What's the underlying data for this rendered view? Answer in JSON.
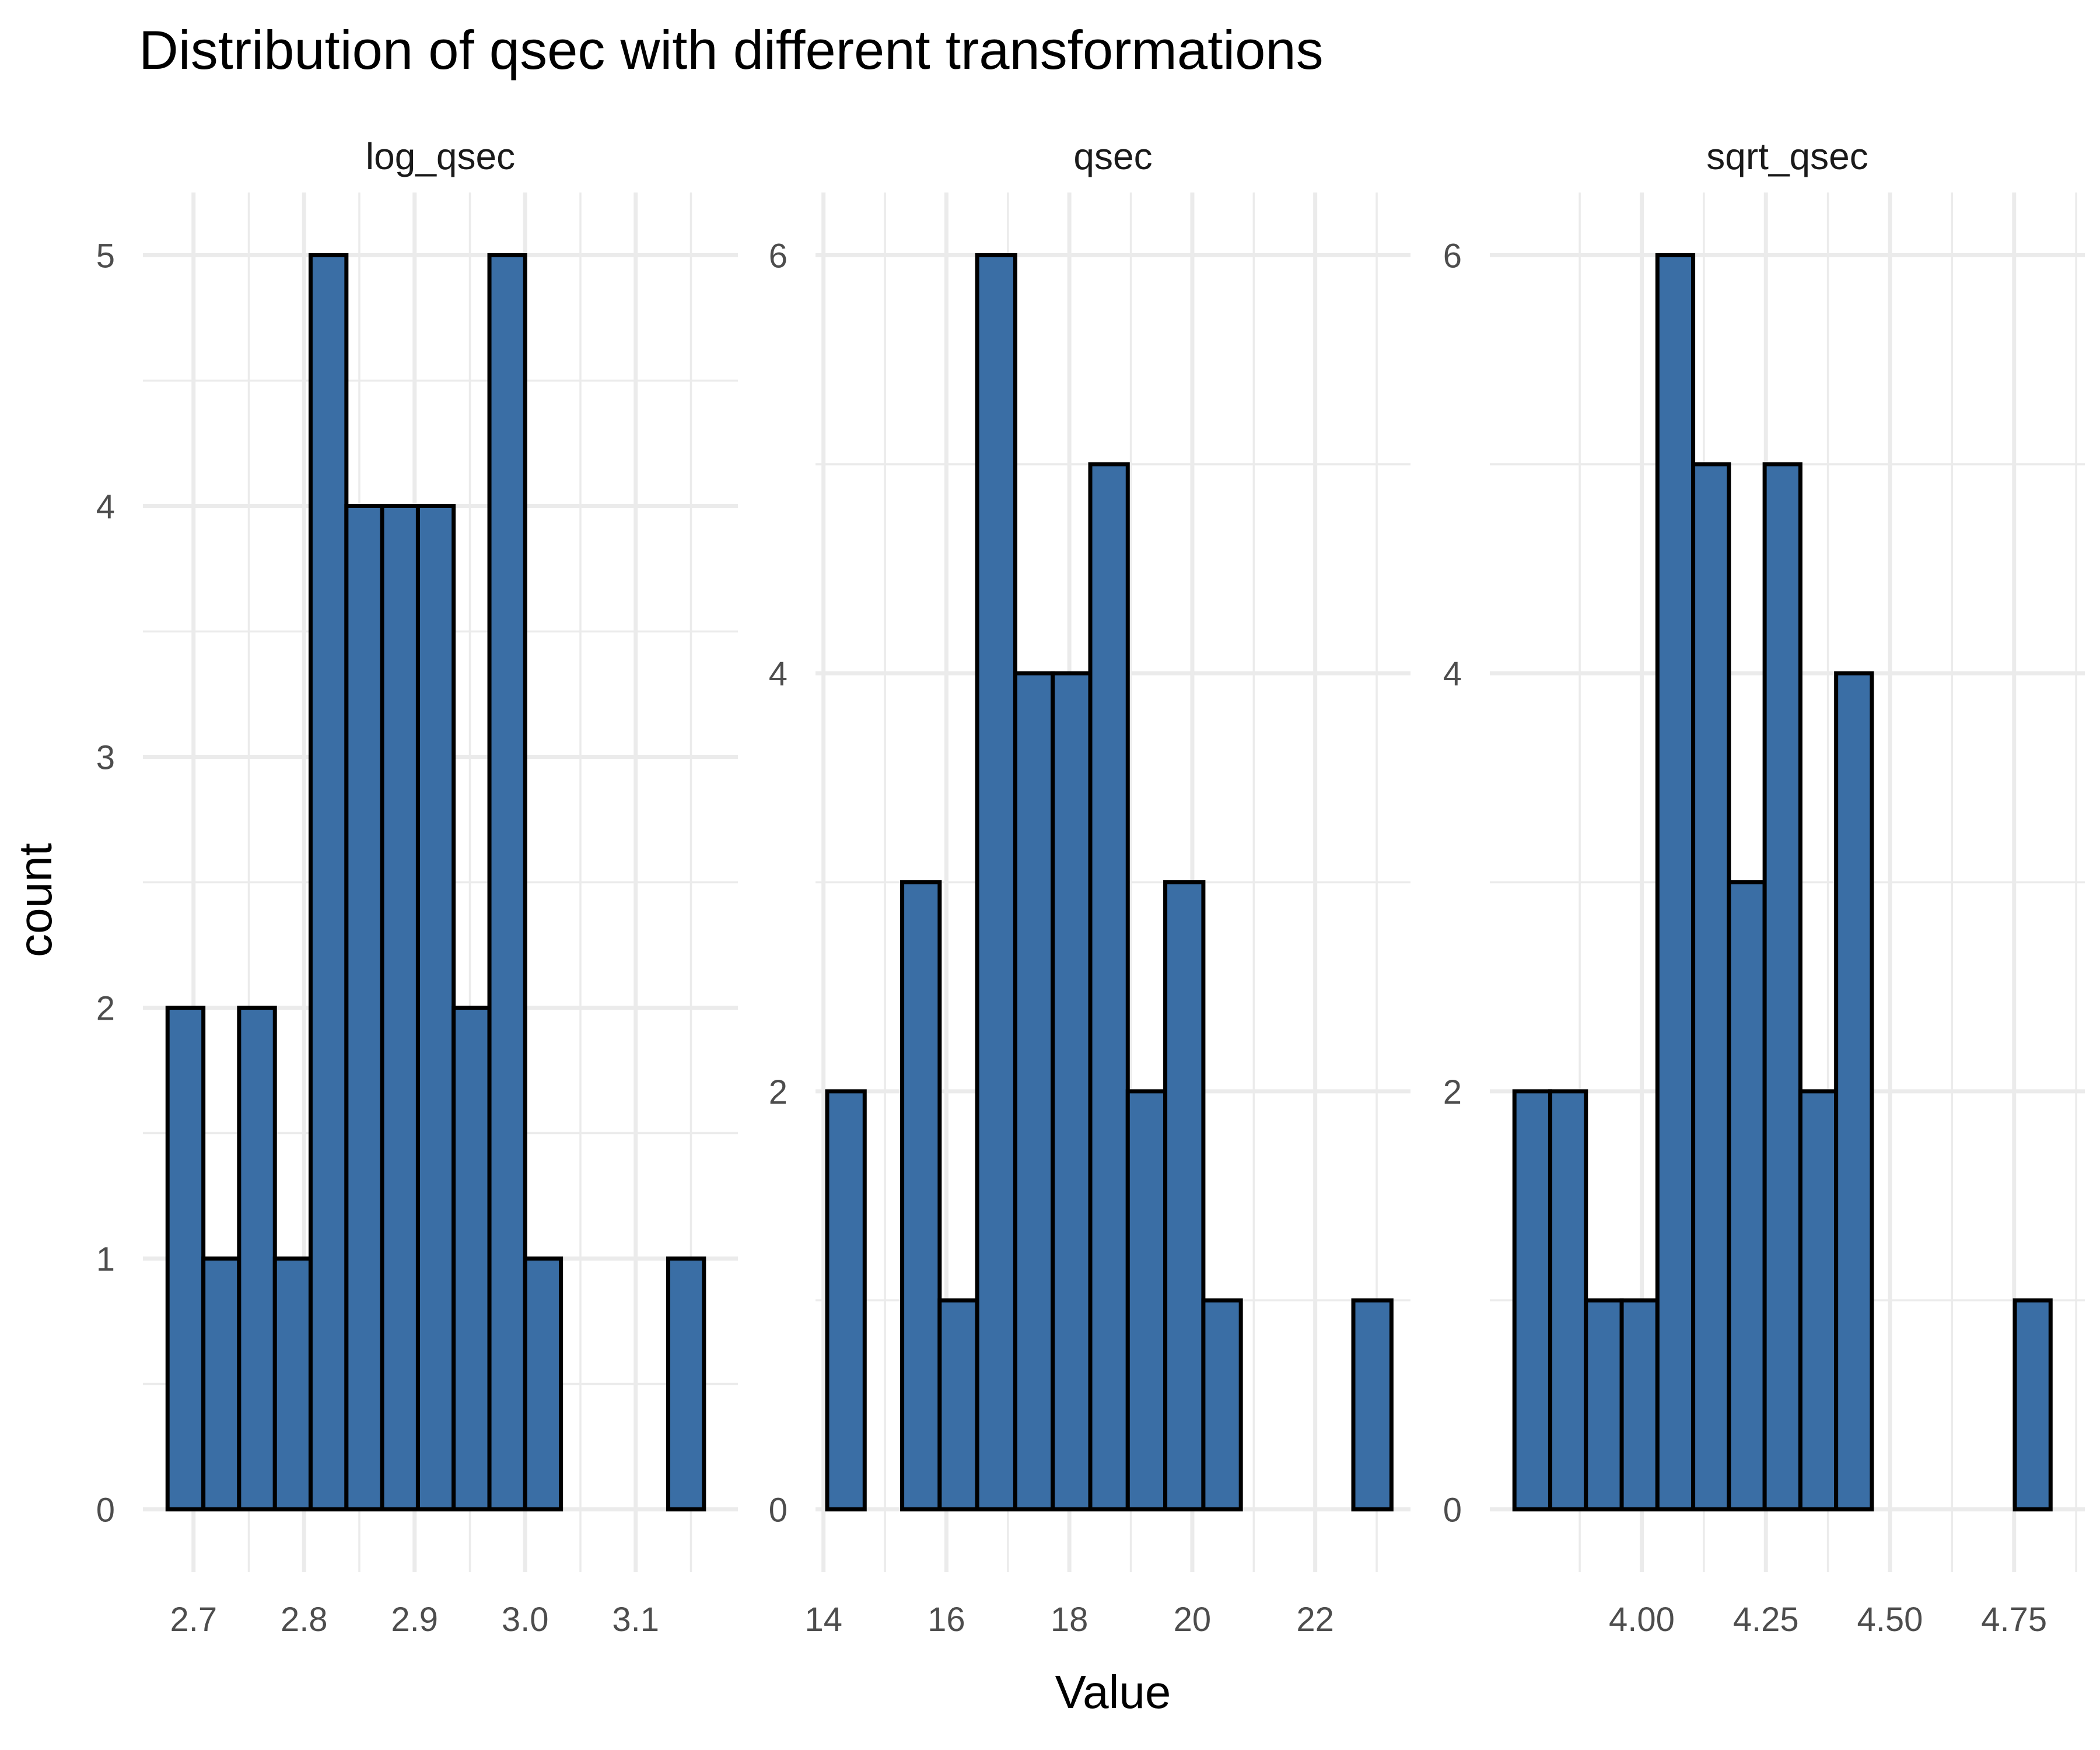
{
  "chart_data": {
    "type": "bar",
    "title": "Distribution of qsec with different transformations",
    "xlabel": "Value",
    "ylabel": "count",
    "bar_fill": "#3a6ea5",
    "bar_outline": "#000000",
    "grid": true,
    "facets": [
      {
        "name": "log_qsec",
        "x_ticks": [
          "2.7",
          "2.8",
          "2.9",
          "3.0",
          "3.1"
        ],
        "x_tick_values": [
          2.7,
          2.8,
          2.9,
          3.0,
          3.1
        ],
        "xlim": [
          2.6542,
          3.1925
        ],
        "y_ticks": [
          "0",
          "1",
          "2",
          "3",
          "4",
          "5"
        ],
        "y_tick_values": [
          0,
          1,
          2,
          3,
          4,
          5
        ],
        "ylim": [
          -0.25,
          5.25
        ],
        "bins": [
          {
            "x0": 2.6765,
            "x1": 2.7089,
            "count": 2
          },
          {
            "x0": 2.7089,
            "x1": 2.7412,
            "count": 1
          },
          {
            "x0": 2.7412,
            "x1": 2.7736,
            "count": 2
          },
          {
            "x0": 2.7736,
            "x1": 2.8059,
            "count": 1
          },
          {
            "x0": 2.8059,
            "x1": 2.8383,
            "count": 5
          },
          {
            "x0": 2.8383,
            "x1": 2.8706,
            "count": 4
          },
          {
            "x0": 2.8706,
            "x1": 2.903,
            "count": 4
          },
          {
            "x0": 2.903,
            "x1": 2.9353,
            "count": 4
          },
          {
            "x0": 2.9353,
            "x1": 2.9677,
            "count": 2
          },
          {
            "x0": 2.9677,
            "x1": 3.0,
            "count": 5
          },
          {
            "x0": 3.0,
            "x1": 3.0324,
            "count": 1
          },
          {
            "x0": 3.0324,
            "x1": 3.0647,
            "count": 0
          },
          {
            "x0": 3.0647,
            "x1": 3.0971,
            "count": 0
          },
          {
            "x0": 3.0971,
            "x1": 3.1294,
            "count": 0
          },
          {
            "x0": 3.1294,
            "x1": 3.1618,
            "count": 1
          }
        ]
      },
      {
        "name": "qsec",
        "x_ticks": [
          "14",
          "16",
          "18",
          "20",
          "22"
        ],
        "x_tick_values": [
          14,
          16,
          18,
          20,
          22
        ],
        "xlim": [
          13.87,
          23.55
        ],
        "y_ticks": [
          "0",
          "2",
          "4",
          "6"
        ],
        "y_tick_values": [
          0,
          2,
          4,
          6
        ],
        "ylim": [
          -0.3,
          6.3
        ],
        "bins": [
          {
            "x0": 14.06,
            "x1": 14.67,
            "count": 2
          },
          {
            "x0": 14.67,
            "x1": 15.28,
            "count": 0
          },
          {
            "x0": 15.28,
            "x1": 15.89,
            "count": 3
          },
          {
            "x0": 15.89,
            "x1": 16.5,
            "count": 1
          },
          {
            "x0": 16.5,
            "x1": 17.12,
            "count": 6
          },
          {
            "x0": 17.12,
            "x1": 17.73,
            "count": 4
          },
          {
            "x0": 17.73,
            "x1": 18.34,
            "count": 4
          },
          {
            "x0": 18.34,
            "x1": 18.95,
            "count": 5
          },
          {
            "x0": 18.95,
            "x1": 19.56,
            "count": 2
          },
          {
            "x0": 19.56,
            "x1": 20.18,
            "count": 3
          },
          {
            "x0": 20.18,
            "x1": 20.79,
            "count": 1
          },
          {
            "x0": 20.79,
            "x1": 21.4,
            "count": 0
          },
          {
            "x0": 21.4,
            "x1": 22.01,
            "count": 0
          },
          {
            "x0": 22.01,
            "x1": 22.62,
            "count": 0
          },
          {
            "x0": 22.62,
            "x1": 23.24,
            "count": 1
          }
        ]
      },
      {
        "name": "sqrt_qsec",
        "x_ticks": [
          "4.00",
          "4.25",
          "4.50",
          "4.75"
        ],
        "x_tick_values": [
          4.0,
          4.25,
          4.5,
          4.75
        ],
        "xlim": [
          3.6939,
          4.8925
        ],
        "y_ticks": [
          "0",
          "2",
          "4",
          "6"
        ],
        "y_tick_values": [
          0,
          2,
          4,
          6
        ],
        "ylim": [
          -0.3,
          6.3
        ],
        "bins": [
          {
            "x0": 3.7435,
            "x1": 3.8155,
            "count": 2
          },
          {
            "x0": 3.8155,
            "x1": 3.8875,
            "count": 2
          },
          {
            "x0": 3.8875,
            "x1": 3.9595,
            "count": 1
          },
          {
            "x0": 3.9595,
            "x1": 4.0315,
            "count": 1
          },
          {
            "x0": 4.0315,
            "x1": 4.1035,
            "count": 6
          },
          {
            "x0": 4.1035,
            "x1": 4.1755,
            "count": 5
          },
          {
            "x0": 4.1755,
            "x1": 4.2475,
            "count": 3
          },
          {
            "x0": 4.2475,
            "x1": 4.3195,
            "count": 5
          },
          {
            "x0": 4.3195,
            "x1": 4.3915,
            "count": 2
          },
          {
            "x0": 4.3915,
            "x1": 4.4635,
            "count": 4
          },
          {
            "x0": 4.4635,
            "x1": 4.5355,
            "count": 0
          },
          {
            "x0": 4.5355,
            "x1": 4.6075,
            "count": 0
          },
          {
            "x0": 4.6075,
            "x1": 4.6795,
            "count": 0
          },
          {
            "x0": 4.6795,
            "x1": 4.7515,
            "count": 0
          },
          {
            "x0": 4.7515,
            "x1": 4.8235,
            "count": 1
          }
        ]
      }
    ]
  }
}
